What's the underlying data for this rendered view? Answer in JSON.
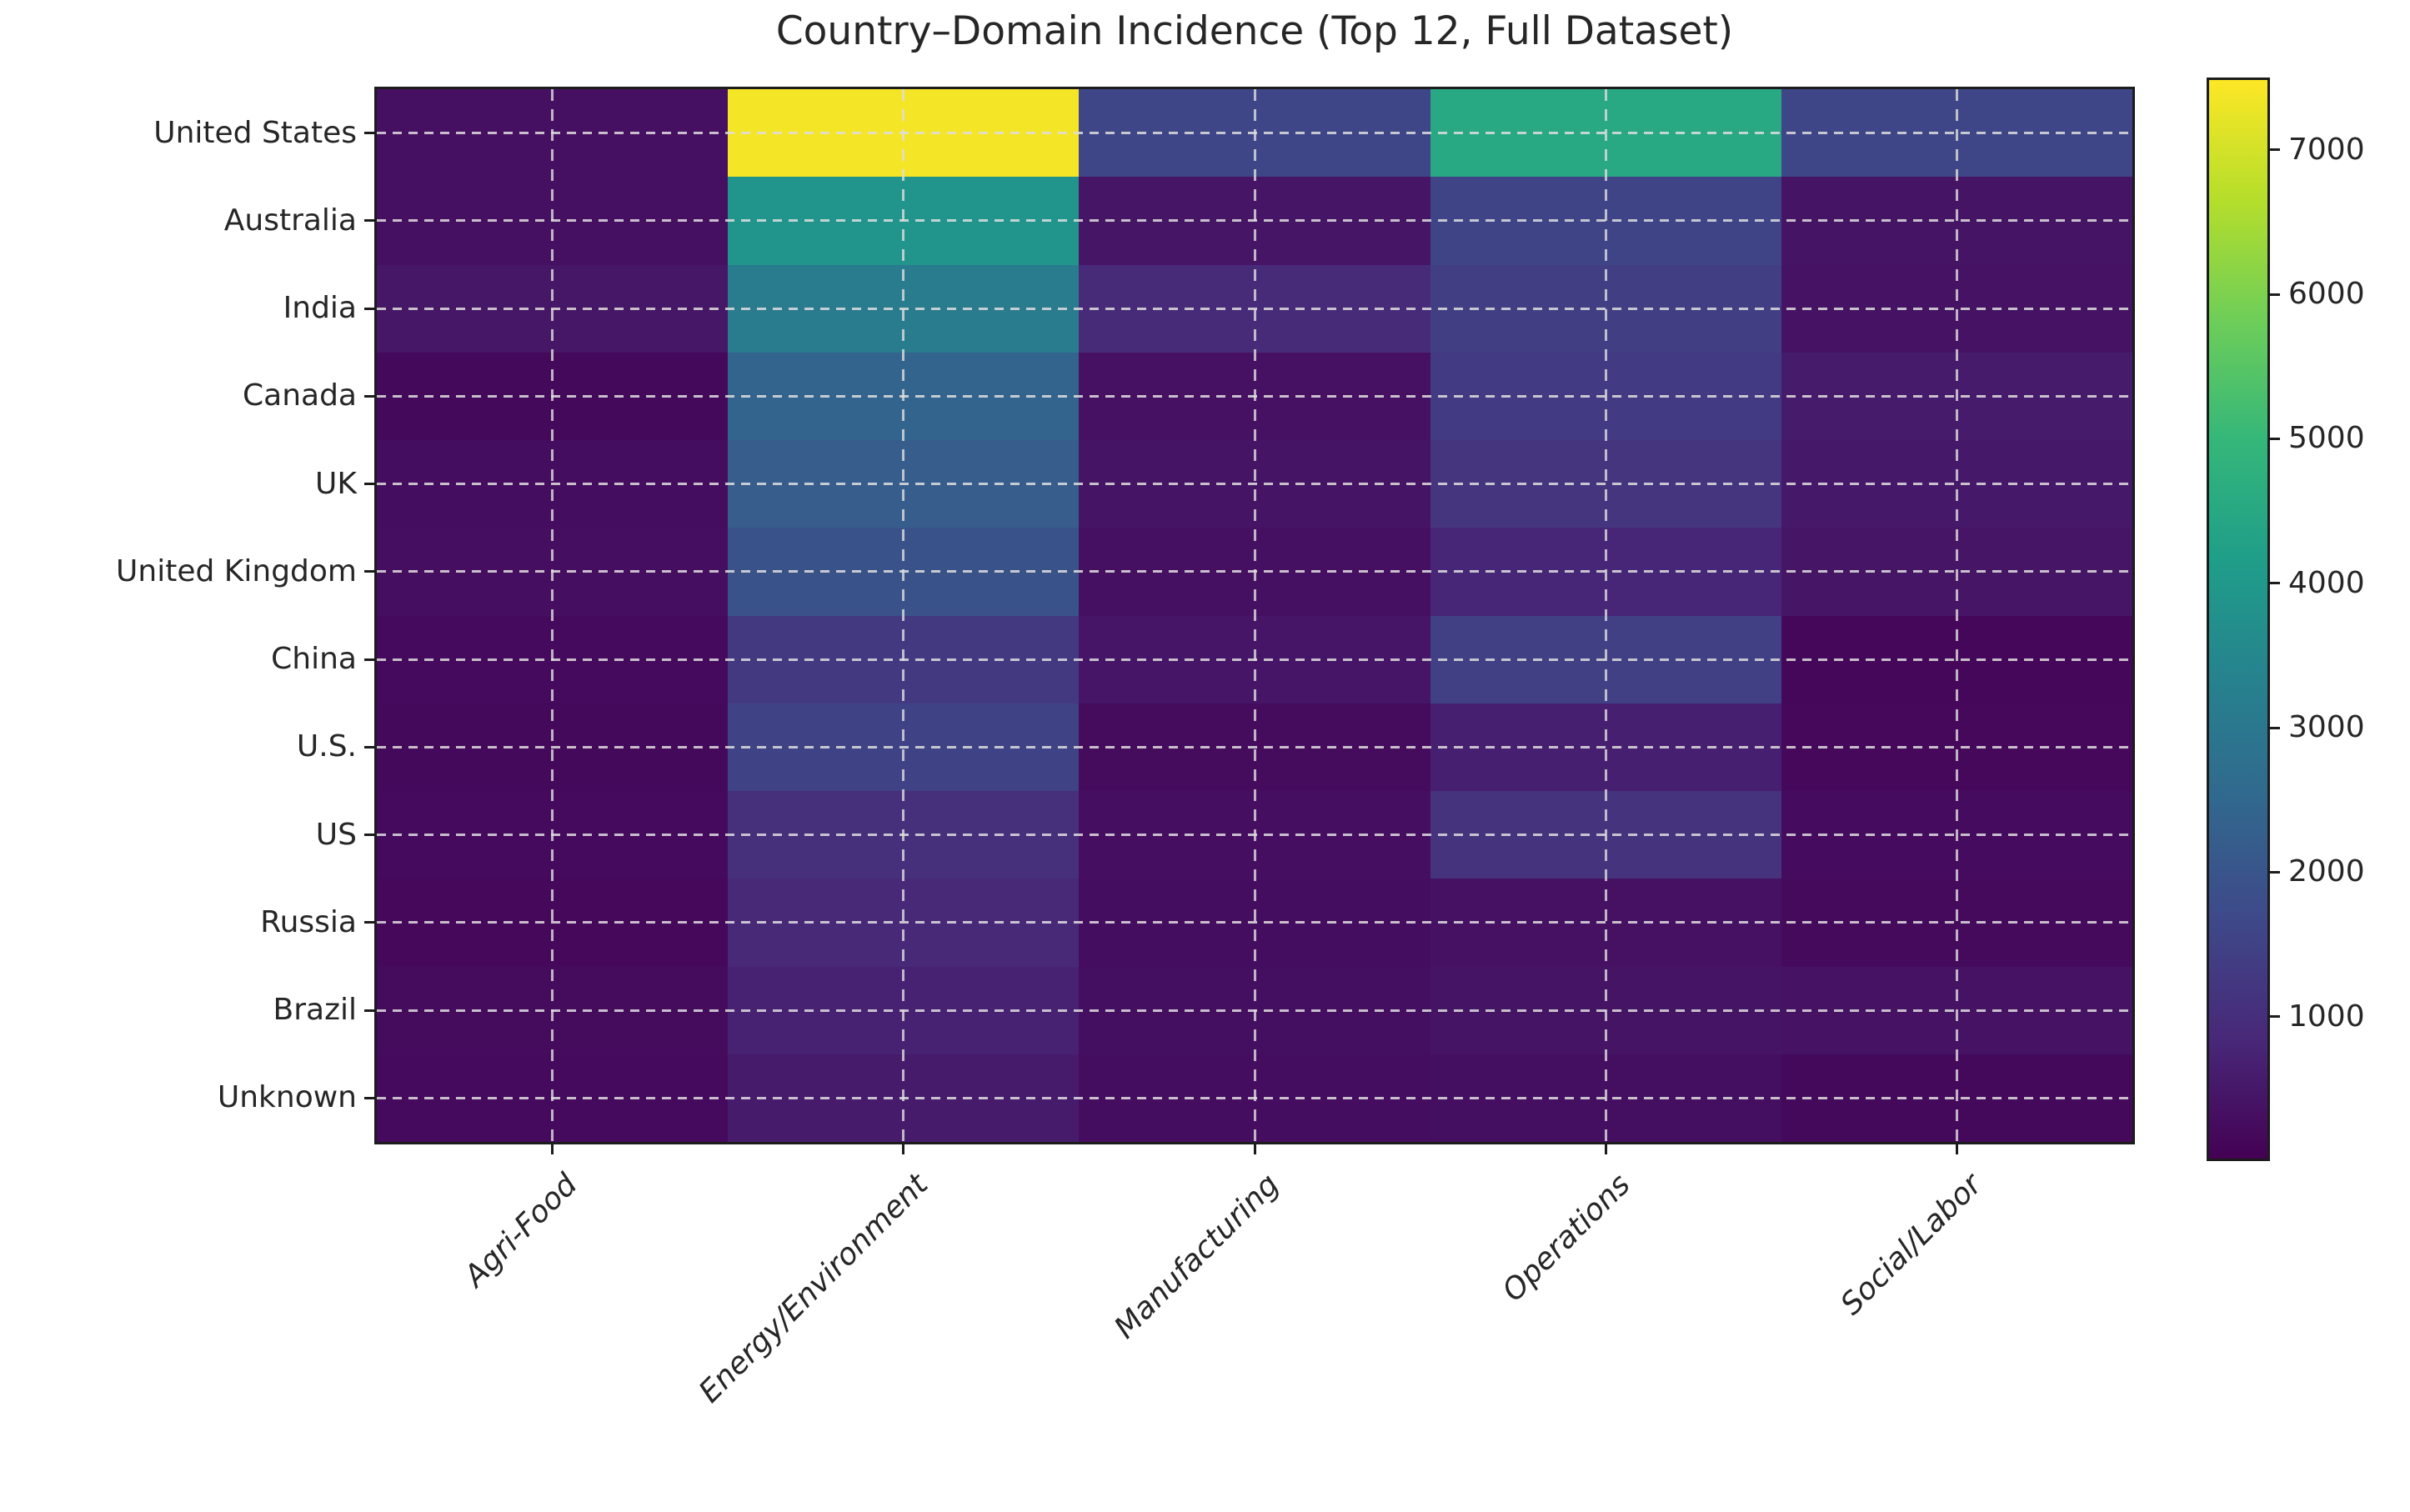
{
  "chart_data": {
    "type": "heatmap",
    "title": "Country–Domain Incidence (Top 12, Full Dataset)",
    "xlabel": "",
    "ylabel": "",
    "rows": [
      "United States",
      "Australia",
      "India",
      "Canada",
      "UK",
      "United Kingdom",
      "China",
      "U.S.",
      "US",
      "Russia",
      "Brazil",
      "Unknown"
    ],
    "columns": [
      "Agri-Food",
      "Energy/Environment",
      "Manufacturing",
      "Operations",
      "Social/Labor"
    ],
    "values": [
      [
        330,
        7400,
        1600,
        4500,
        1580
      ],
      [
        330,
        3900,
        420,
        1550,
        400
      ],
      [
        450,
        3100,
        900,
        1400,
        360
      ],
      [
        180,
        2400,
        340,
        1300,
        560
      ],
      [
        250,
        2200,
        400,
        1150,
        500
      ],
      [
        280,
        1900,
        320,
        800,
        420
      ],
      [
        200,
        1250,
        430,
        1450,
        120
      ],
      [
        170,
        1500,
        230,
        650,
        160
      ],
      [
        200,
        1000,
        280,
        1100,
        220
      ],
      [
        150,
        850,
        250,
        350,
        190
      ],
      [
        240,
        700,
        290,
        400,
        360
      ],
      [
        200,
        550,
        250,
        300,
        170
      ]
    ],
    "colormap": "viridis",
    "vmin": 0,
    "vmax": 7500,
    "colorbar_ticks": [
      1000,
      2000,
      3000,
      4000,
      5000,
      6000,
      7000
    ],
    "grid": "dashed light lines at row and column centers",
    "legend_position": "colorbar-right"
  },
  "colors": {
    "background": "#ffffff",
    "spine": "#1c1c1c",
    "text": "#262626",
    "grid_line": "#dedede",
    "viridis_stops": [
      "#440154",
      "#482878",
      "#3e4989",
      "#31688e",
      "#26828e",
      "#1f9e89",
      "#35b779",
      "#6ece58",
      "#b5de2b",
      "#fde725"
    ]
  }
}
